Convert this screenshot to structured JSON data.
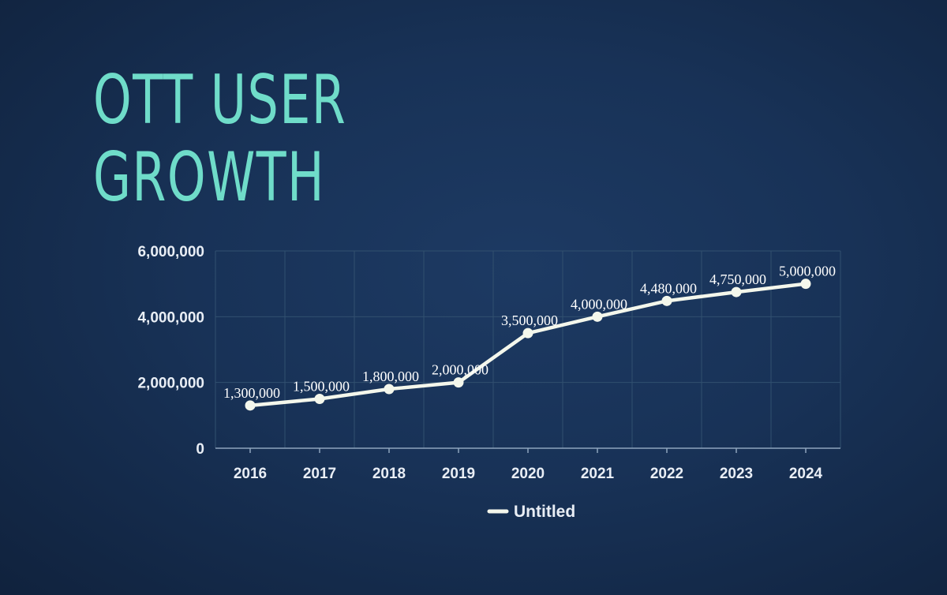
{
  "title_lines": [
    "OTT USER",
    "GROWTH"
  ],
  "colors": {
    "background": "#183257",
    "title": "#6fdcc9",
    "line": "#f4f7ec",
    "grid": "#31506f",
    "text": "#e9eef5"
  },
  "chart_data": {
    "type": "line",
    "title": "OTT USER GROWTH",
    "categories": [
      "2016",
      "2017",
      "2018",
      "2019",
      "2020",
      "2021",
      "2022",
      "2023",
      "2024"
    ],
    "series": [
      {
        "name": "Untitled",
        "values": [
          1300000,
          1500000,
          1800000,
          2000000,
          3500000,
          4000000,
          4480000,
          4750000,
          5000000
        ],
        "labels": [
          "1,300,000",
          "1,500,000",
          "1,800,000",
          "2,000,000",
          "3,500,000",
          "4,000,000",
          "4,480,000",
          "4,750,000",
          "5,000,000"
        ]
      }
    ],
    "xlabel": "",
    "ylabel": "",
    "ylim": [
      0,
      6000000
    ],
    "yticks": [
      0,
      2000000,
      4000000,
      6000000
    ],
    "ytick_labels": [
      "0",
      "2,000,000",
      "4,000,000",
      "6,000,000"
    ],
    "grid": true,
    "legend_position": "bottom"
  }
}
